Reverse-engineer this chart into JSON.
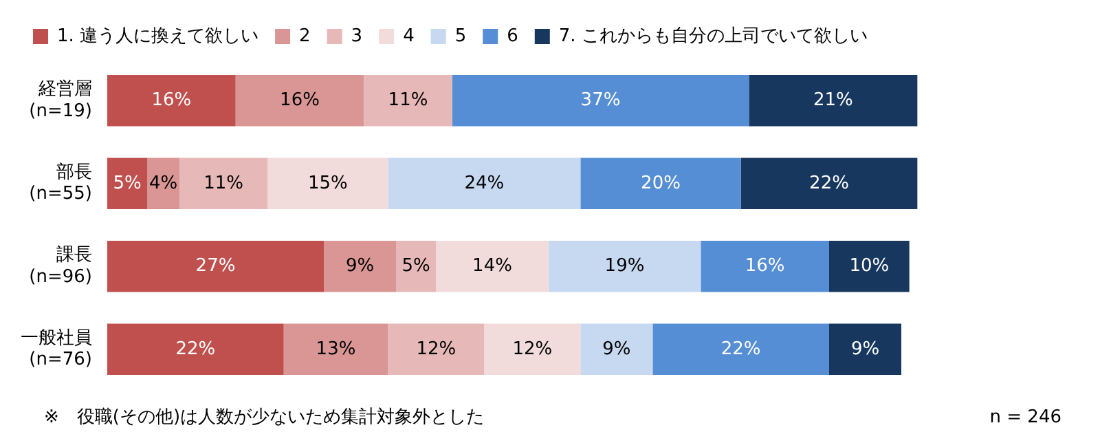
{
  "chart_data": {
    "type": "bar",
    "orientation": "horizontal",
    "stacked": true,
    "legend": "top",
    "categories": [
      "経営層\n(n=19)",
      "部長\n(n=55)",
      "課長\n(n=96)",
      "一般社員\n(n=76)"
    ],
    "series": [
      {
        "name": "1. 違う人に換えて欲しい",
        "color": "#c0504d",
        "values": [
          16,
          5,
          27,
          22
        ],
        "value_labels": [
          "16%",
          "5%",
          "27%",
          "22%"
        ]
      },
      {
        "name": "2",
        "color": "#d99694",
        "values": [
          16,
          4,
          9,
          13
        ],
        "value_labels": [
          "16%",
          "4%",
          "9%",
          "13%"
        ]
      },
      {
        "name": "3",
        "color": "#e6b9b8",
        "values": [
          11,
          11,
          5,
          12
        ],
        "value_labels": [
          "11%",
          "11%",
          "5%",
          "12%"
        ]
      },
      {
        "name": "4",
        "color": "#f2dcdb",
        "values": [
          0,
          15,
          14,
          12
        ],
        "value_labels": [
          null,
          "15%",
          "14%",
          "12%"
        ]
      },
      {
        "name": "5",
        "color": "#c6d9f1",
        "values": [
          0,
          24,
          19,
          9
        ],
        "value_labels": [
          null,
          "24%",
          "19%",
          "9%"
        ]
      },
      {
        "name": "6",
        "color": "#558ed5",
        "values": [
          37,
          20,
          16,
          22
        ],
        "value_labels": [
          "37%",
          "20%",
          "16%",
          "22%"
        ]
      },
      {
        "name": "7. これからも自分の上司でいて欲しい",
        "color": "#17375e",
        "values": [
          21,
          22,
          10,
          9
        ],
        "value_labels": [
          "21%",
          "22%",
          "10%",
          "9%"
        ]
      }
    ],
    "annotations": [
      "※　役職(その他)は人数が少ないため集計対象外とした",
      "n = 246"
    ]
  }
}
